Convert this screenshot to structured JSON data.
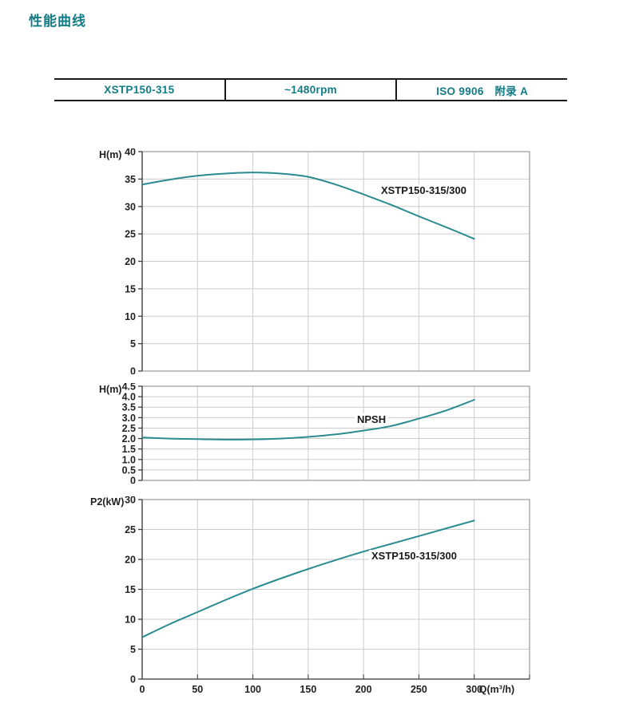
{
  "title": "性能曲线",
  "colors": {
    "accent": "#117c85",
    "curve": "#2a8b90",
    "grid": "#cccccc",
    "plot_border": "#9a9a9a",
    "axis": "#3d3d3d",
    "tick_text": "#222222",
    "table_border": "#1a1a1a"
  },
  "spec_table": {
    "model": "XSTP150-315",
    "speed": "~1480rpm",
    "standard": "ISO 9906　附录 A"
  },
  "x_axis": {
    "label": "Q(m³/h)",
    "ticks": [
      0,
      50,
      100,
      150,
      200,
      250,
      300
    ],
    "max": 350
  },
  "chart_data": [
    {
      "type": "line",
      "name": "head-flow-curve",
      "series_label": "XSTP150-315/300",
      "ylabel": "H(m)",
      "ylim": [
        0,
        40
      ],
      "ystep": 5,
      "xlim": [
        0,
        350
      ],
      "x": [
        0,
        25,
        50,
        75,
        100,
        125,
        150,
        175,
        200,
        225,
        250,
        275,
        300
      ],
      "y": [
        34.0,
        34.9,
        35.6,
        36.0,
        36.2,
        36.0,
        35.4,
        34.0,
        32.2,
        30.3,
        28.2,
        26.2,
        24.1
      ]
    },
    {
      "type": "line",
      "name": "npsh-curve",
      "series_label": "NPSH",
      "ylabel": "H(m)",
      "ylim": [
        0,
        4.5
      ],
      "ystep": 0.5,
      "xlim": [
        0,
        350
      ],
      "x": [
        0,
        25,
        50,
        75,
        100,
        125,
        150,
        175,
        200,
        225,
        250,
        275,
        300
      ],
      "y": [
        2.05,
        2.0,
        1.97,
        1.95,
        1.96,
        2.0,
        2.08,
        2.2,
        2.38,
        2.6,
        2.95,
        3.35,
        3.85
      ]
    },
    {
      "type": "line",
      "name": "power-curve",
      "series_label": "XSTP150-315/300",
      "ylabel": "P2(kW)",
      "ylim": [
        0,
        30
      ],
      "ystep": 5,
      "xlim": [
        0,
        350
      ],
      "x": [
        0,
        25,
        50,
        75,
        100,
        125,
        150,
        175,
        200,
        225,
        250,
        275,
        300
      ],
      "y": [
        7.0,
        9.2,
        11.2,
        13.2,
        15.1,
        16.8,
        18.4,
        19.9,
        21.3,
        22.6,
        23.9,
        25.2,
        26.5
      ]
    }
  ]
}
